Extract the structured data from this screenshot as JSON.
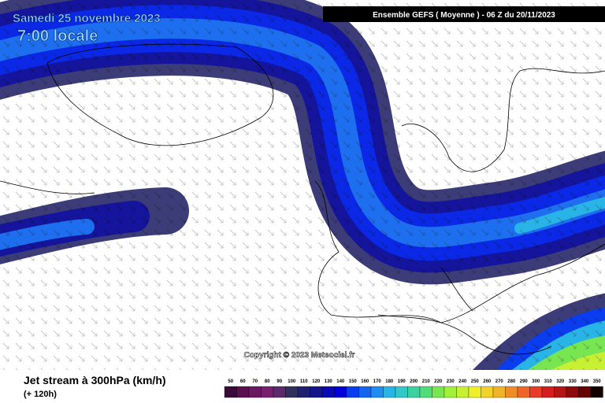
{
  "header": {
    "date": "Samedi 25 novembre 2023",
    "time": "7:00 locale",
    "model": "Ensemble GEFS  ( Moyenne )  -  06 Z du 20/11/2023"
  },
  "copyright": "Copyright © 2023 Meteociel.fr",
  "footer": {
    "title": "Jet stream à 300hPa (km/h)",
    "lead": "(+ 120h)"
  },
  "legend": {
    "values": [
      50,
      60,
      70,
      80,
      90,
      100,
      110,
      120,
      130,
      140,
      150,
      160,
      170,
      180,
      190,
      200,
      210,
      220,
      230,
      240,
      250,
      260,
      270,
      280,
      290,
      300,
      310,
      320,
      330,
      340,
      350
    ],
    "colors": [
      "#3a0a38",
      "#5a1050",
      "#6a1a60",
      "#782070",
      "#5a2a6a",
      "#30305a",
      "#202070",
      "#14148c",
      "#0a0ab4",
      "#0000dc",
      "#0a3cf0",
      "#1464f0",
      "#1e8cf0",
      "#28b4e6",
      "#32c8c8",
      "#3cd2a0",
      "#50dc78",
      "#78e650",
      "#a0f03c",
      "#c8f032",
      "#f0f028",
      "#f0d228",
      "#f0b428",
      "#f08c28",
      "#f06428",
      "#e63c28",
      "#d21e1e",
      "#b41414",
      "#8c0a0a",
      "#640505",
      "#140000"
    ]
  }
}
